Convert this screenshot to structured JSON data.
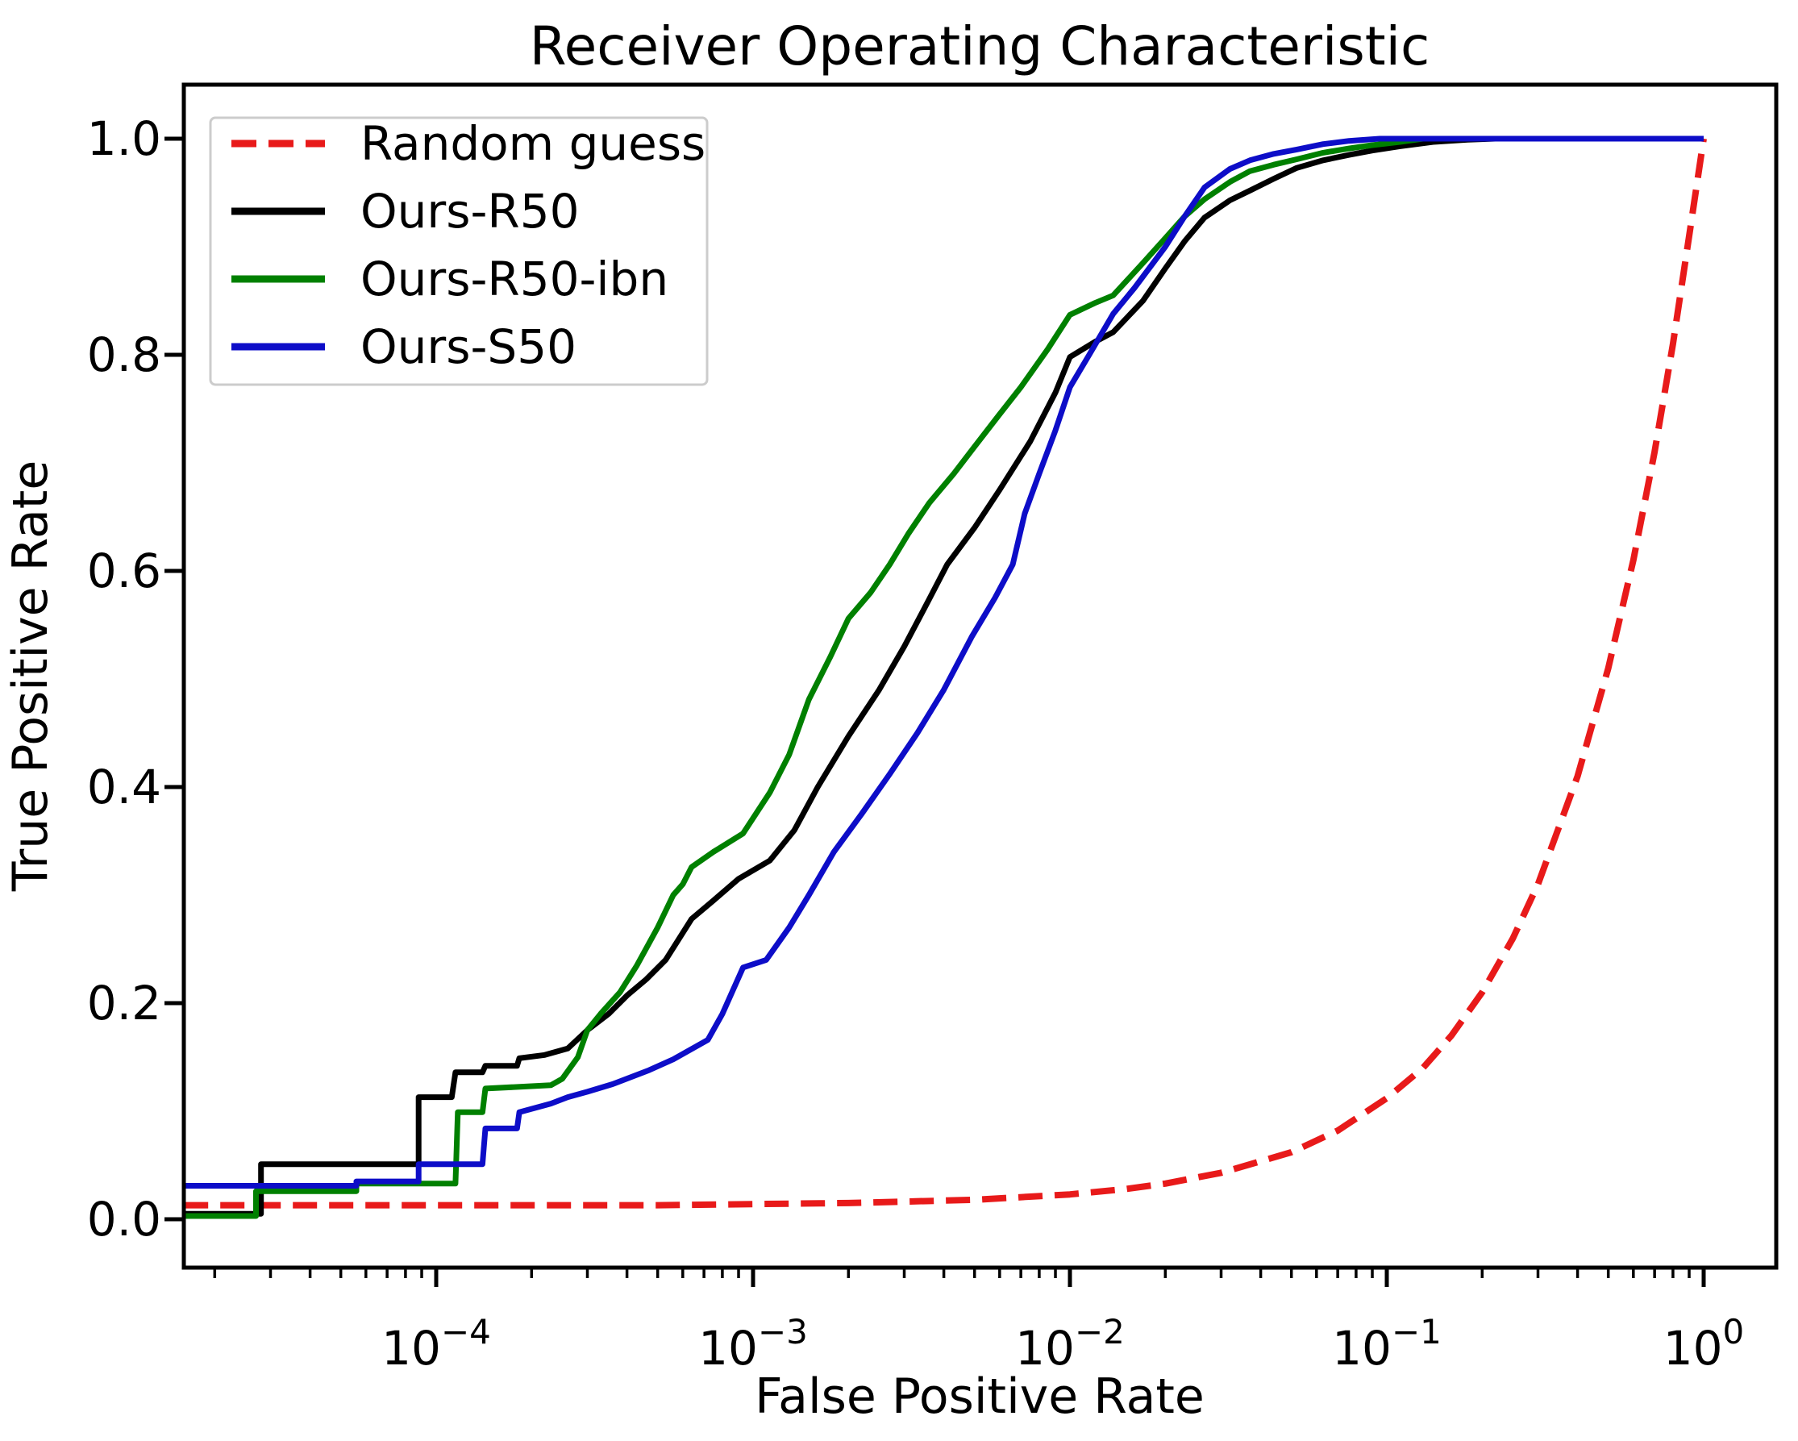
{
  "title": "Receiver Operating Characteristic",
  "x_axis": {
    "label": "False Positive Rate",
    "scale": "log",
    "tick_exponents": [
      -4,
      -3,
      -2,
      -1,
      0
    ],
    "tick_labels": [
      "10⁻⁴",
      "10⁻³",
      "10⁻²",
      "10⁻¹",
      "10⁰"
    ]
  },
  "y_axis": {
    "label": "True Positive Rate",
    "tick_values": [
      0.0,
      0.2,
      0.4,
      0.6,
      0.8,
      1.0
    ],
    "tick_labels": [
      "0.0",
      "0.2",
      "0.4",
      "0.6",
      "0.8",
      "1.0"
    ]
  },
  "legend": {
    "position": "upper-left",
    "items": [
      {
        "label": "Random guess",
        "color": "#e81a1a",
        "dashed": true
      },
      {
        "label": "Ours-R50",
        "color": "#000000",
        "dashed": false
      },
      {
        "label": "Ours-R50-ibn",
        "color": "#008000",
        "dashed": false
      },
      {
        "label": "Ours-S50",
        "color": "#0d0dc8",
        "dashed": false
      }
    ]
  },
  "chart_data": {
    "type": "line",
    "title": "Receiver Operating Characteristic",
    "xlabel": "False Positive Rate",
    "ylabel": "True Positive Rate",
    "x_scale": "log",
    "xlim_log10": [
      -4.796,
      0.229
    ],
    "ylim": [
      -0.045,
      1.05
    ],
    "grid": false,
    "legend_position": "upper-left",
    "series": [
      {
        "name": "Random guess",
        "color": "#e81a1a",
        "style": "dashed",
        "points": [
          [
            1.6e-05,
            0.013
          ],
          [
            0.0001,
            0.013
          ],
          [
            0.0005,
            0.013
          ],
          [
            0.001,
            0.014
          ],
          [
            0.002,
            0.015
          ],
          [
            0.005,
            0.018
          ],
          [
            0.01,
            0.023
          ],
          [
            0.015,
            0.028
          ],
          [
            0.02,
            0.033
          ],
          [
            0.03,
            0.043
          ],
          [
            0.05,
            0.062
          ],
          [
            0.07,
            0.082
          ],
          [
            0.1,
            0.112
          ],
          [
            0.13,
            0.14
          ],
          [
            0.16,
            0.17
          ],
          [
            0.2,
            0.21
          ],
          [
            0.25,
            0.26
          ],
          [
            0.3,
            0.31
          ],
          [
            0.4,
            0.41
          ],
          [
            0.5,
            0.51
          ],
          [
            0.6,
            0.61
          ],
          [
            0.7,
            0.71
          ],
          [
            0.8,
            0.81
          ],
          [
            0.9,
            0.91
          ],
          [
            1.0,
            1.0
          ]
        ]
      },
      {
        "name": "Ours-R50",
        "color": "#000000",
        "style": "solid",
        "points": [
          [
            1.6e-05,
            0.005
          ],
          [
            2.8e-05,
            0.005
          ],
          [
            2.8e-05,
            0.051
          ],
          [
            8.8e-05,
            0.051
          ],
          [
            8.8e-05,
            0.113
          ],
          [
            0.000112,
            0.113
          ],
          [
            0.000115,
            0.136
          ],
          [
            0.00014,
            0.136
          ],
          [
            0.000143,
            0.142
          ],
          [
            0.00018,
            0.142
          ],
          [
            0.000183,
            0.149
          ],
          [
            0.00022,
            0.152
          ],
          [
            0.00026,
            0.158
          ],
          [
            0.0003,
            0.175
          ],
          [
            0.00035,
            0.19
          ],
          [
            0.0004,
            0.207
          ],
          [
            0.00046,
            0.222
          ],
          [
            0.00053,
            0.24
          ],
          [
            0.00064,
            0.278
          ],
          [
            0.00075,
            0.295
          ],
          [
            0.0009,
            0.315
          ],
          [
            0.00113,
            0.332
          ],
          [
            0.00135,
            0.36
          ],
          [
            0.0016,
            0.4
          ],
          [
            0.002,
            0.447
          ],
          [
            0.0025,
            0.49
          ],
          [
            0.003,
            0.53
          ],
          [
            0.0036,
            0.574
          ],
          [
            0.0041,
            0.606
          ],
          [
            0.005,
            0.64
          ],
          [
            0.006,
            0.675
          ],
          [
            0.0075,
            0.72
          ],
          [
            0.009,
            0.765
          ],
          [
            0.01,
            0.798
          ],
          [
            0.012,
            0.812
          ],
          [
            0.0137,
            0.821
          ],
          [
            0.017,
            0.85
          ],
          [
            0.02,
            0.88
          ],
          [
            0.023,
            0.905
          ],
          [
            0.0266,
            0.927
          ],
          [
            0.032,
            0.943
          ],
          [
            0.037,
            0.952
          ],
          [
            0.044,
            0.963
          ],
          [
            0.052,
            0.973
          ],
          [
            0.063,
            0.98
          ],
          [
            0.076,
            0.985
          ],
          [
            0.09,
            0.989
          ],
          [
            0.11,
            0.993
          ],
          [
            0.14,
            0.997
          ],
          [
            0.18,
            0.999
          ],
          [
            0.22,
            1.0
          ],
          [
            1.0,
            1.0
          ]
        ]
      },
      {
        "name": "Ours-R50-ibn",
        "color": "#008000",
        "style": "solid",
        "points": [
          [
            1.6e-05,
            0.003
          ],
          [
            2.7e-05,
            0.003
          ],
          [
            2.7e-05,
            0.026
          ],
          [
            5.6e-05,
            0.026
          ],
          [
            5.6e-05,
            0.033
          ],
          [
            0.000115,
            0.033
          ],
          [
            0.000117,
            0.099
          ],
          [
            0.00014,
            0.099
          ],
          [
            0.000143,
            0.121
          ],
          [
            0.00023,
            0.124
          ],
          [
            0.00025,
            0.13
          ],
          [
            0.00028,
            0.15
          ],
          [
            0.0003,
            0.175
          ],
          [
            0.00033,
            0.19
          ],
          [
            0.00038,
            0.21
          ],
          [
            0.00043,
            0.235
          ],
          [
            0.0005,
            0.27
          ],
          [
            0.00056,
            0.3
          ],
          [
            0.0006,
            0.31
          ],
          [
            0.00064,
            0.326
          ],
          [
            0.00075,
            0.34
          ],
          [
            0.00093,
            0.357
          ],
          [
            0.00113,
            0.395
          ],
          [
            0.0013,
            0.43
          ],
          [
            0.0015,
            0.481
          ],
          [
            0.00175,
            0.52
          ],
          [
            0.002,
            0.556
          ],
          [
            0.00235,
            0.58
          ],
          [
            0.0027,
            0.606
          ],
          [
            0.0031,
            0.635
          ],
          [
            0.0036,
            0.663
          ],
          [
            0.0043,
            0.69
          ],
          [
            0.005,
            0.715
          ],
          [
            0.006,
            0.745
          ],
          [
            0.007,
            0.77
          ],
          [
            0.0085,
            0.805
          ],
          [
            0.01,
            0.837
          ],
          [
            0.012,
            0.848
          ],
          [
            0.0137,
            0.855
          ],
          [
            0.017,
            0.885
          ],
          [
            0.02,
            0.908
          ],
          [
            0.023,
            0.928
          ],
          [
            0.0266,
            0.944
          ],
          [
            0.032,
            0.96
          ],
          [
            0.037,
            0.97
          ],
          [
            0.044,
            0.976
          ],
          [
            0.052,
            0.981
          ],
          [
            0.063,
            0.987
          ],
          [
            0.076,
            0.991
          ],
          [
            0.09,
            0.994
          ],
          [
            0.11,
            0.997
          ],
          [
            0.13,
            1.0
          ],
          [
            1.0,
            1.0
          ]
        ]
      },
      {
        "name": "Ours-S50",
        "color": "#0d0dc8",
        "style": "solid",
        "points": [
          [
            1.6e-05,
            0.031
          ],
          [
            5.6e-05,
            0.031
          ],
          [
            5.6e-05,
            0.035
          ],
          [
            8.8e-05,
            0.035
          ],
          [
            8.8e-05,
            0.051
          ],
          [
            0.00014,
            0.051
          ],
          [
            0.000143,
            0.084
          ],
          [
            0.00018,
            0.084
          ],
          [
            0.000183,
            0.099
          ],
          [
            0.00023,
            0.107
          ],
          [
            0.00026,
            0.113
          ],
          [
            0.0003,
            0.118
          ],
          [
            0.00036,
            0.125
          ],
          [
            0.00047,
            0.138
          ],
          [
            0.00056,
            0.148
          ],
          [
            0.00072,
            0.166
          ],
          [
            0.0008,
            0.19
          ],
          [
            0.00093,
            0.233
          ],
          [
            0.0011,
            0.24
          ],
          [
            0.0013,
            0.27
          ],
          [
            0.0015,
            0.3
          ],
          [
            0.0018,
            0.34
          ],
          [
            0.0022,
            0.375
          ],
          [
            0.0027,
            0.412
          ],
          [
            0.0033,
            0.45
          ],
          [
            0.004,
            0.49
          ],
          [
            0.0049,
            0.539
          ],
          [
            0.0058,
            0.575
          ],
          [
            0.0066,
            0.606
          ],
          [
            0.0072,
            0.653
          ],
          [
            0.008,
            0.69
          ],
          [
            0.009,
            0.73
          ],
          [
            0.01,
            0.77
          ],
          [
            0.0115,
            0.8
          ],
          [
            0.0137,
            0.838
          ],
          [
            0.016,
            0.862
          ],
          [
            0.02,
            0.9
          ],
          [
            0.023,
            0.928
          ],
          [
            0.0266,
            0.955
          ],
          [
            0.032,
            0.972
          ],
          [
            0.037,
            0.98
          ],
          [
            0.044,
            0.986
          ],
          [
            0.052,
            0.99
          ],
          [
            0.063,
            0.995
          ],
          [
            0.076,
            0.998
          ],
          [
            0.095,
            1.0
          ],
          [
            1.0,
            1.0
          ]
        ]
      }
    ]
  }
}
